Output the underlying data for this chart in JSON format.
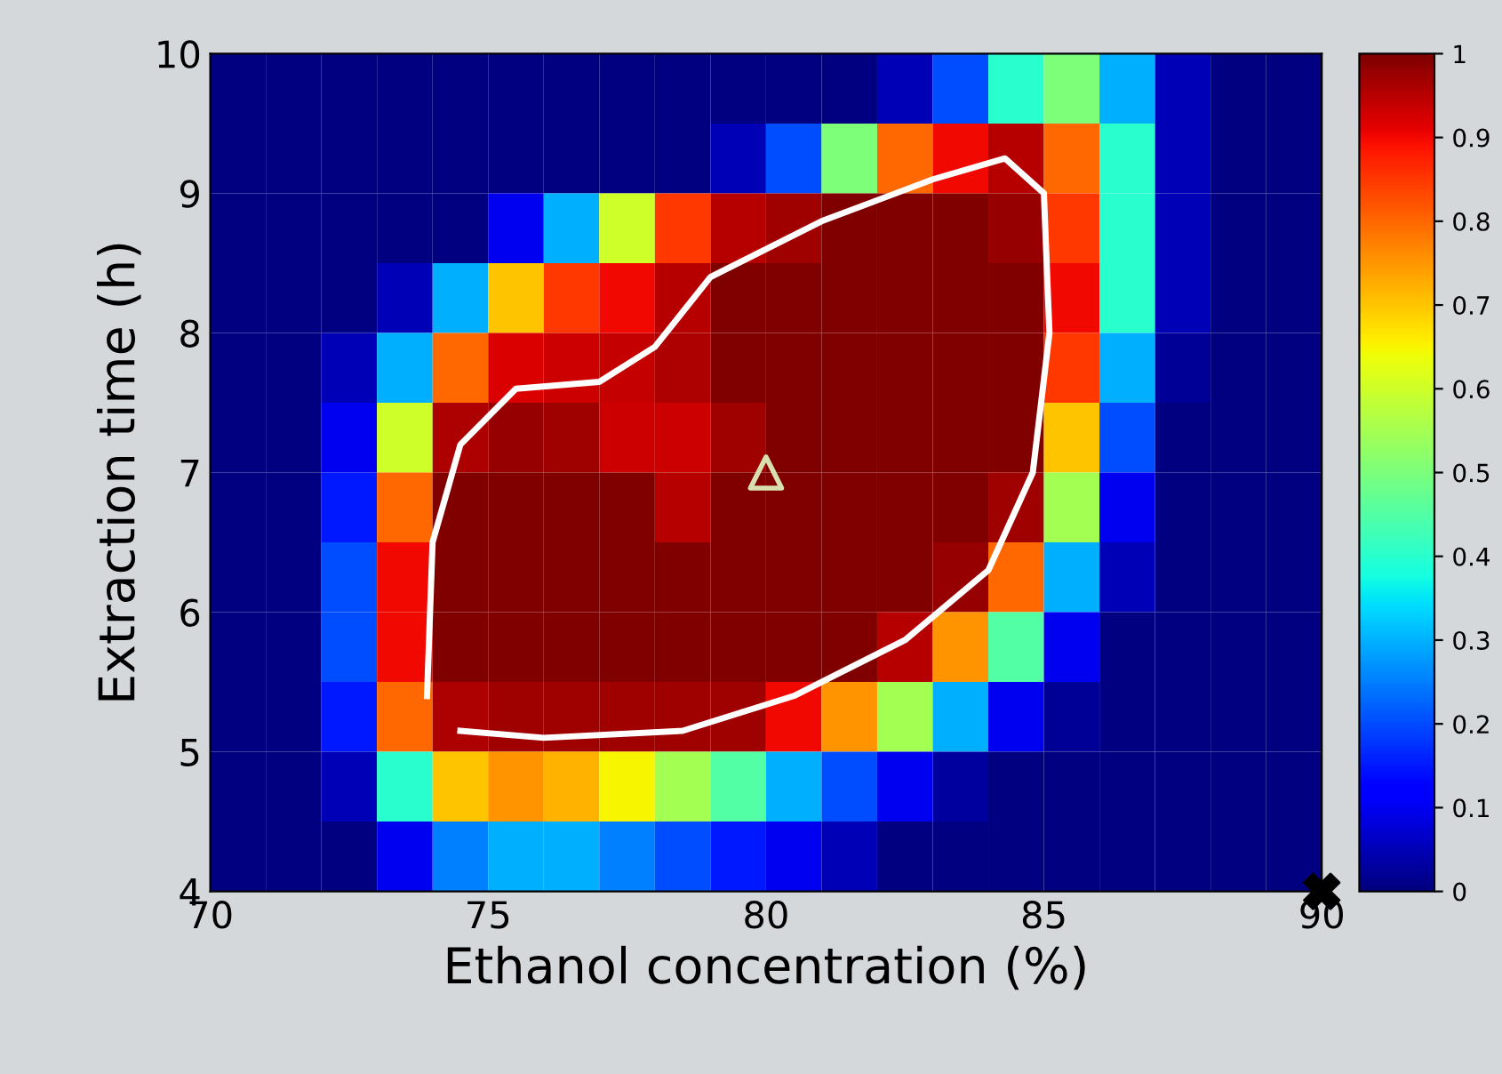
{
  "chart_data": {
    "type": "heatmap",
    "xlabel": "Ethanol concentration (%)",
    "ylabel": "Extraction time (h)",
    "xlim": [
      70,
      90
    ],
    "ylim": [
      4,
      10
    ],
    "xticks": [
      70,
      75,
      80,
      85,
      90
    ],
    "yticks": [
      4,
      5,
      6,
      7,
      8,
      9,
      10
    ],
    "clim": [
      0,
      1
    ],
    "cticks": [
      0,
      0.1,
      0.2,
      0.3,
      0.4,
      0.5,
      0.6,
      0.7,
      0.8,
      0.9,
      1
    ],
    "cells": [
      [
        0,
        0,
        0,
        0,
        0,
        0,
        0,
        0,
        0,
        0,
        0,
        0,
        0.05,
        0.2,
        0.4,
        0.5,
        0.3,
        0.05,
        0,
        0
      ],
      [
        0,
        0,
        0,
        0,
        0,
        0,
        0,
        0,
        0,
        0.05,
        0.2,
        0.5,
        0.8,
        0.9,
        0.95,
        0.8,
        0.4,
        0.05,
        0,
        0
      ],
      [
        0,
        0,
        0,
        0,
        0,
        0.1,
        0.3,
        0.6,
        0.85,
        0.95,
        0.97,
        1,
        1,
        1,
        0.98,
        0.85,
        0.4,
        0.05,
        0,
        0
      ],
      [
        0,
        0,
        0,
        0.05,
        0.3,
        0.7,
        0.85,
        0.9,
        0.95,
        1,
        1,
        1,
        1,
        1,
        1,
        0.9,
        0.4,
        0.05,
        0,
        0
      ],
      [
        0,
        0,
        0.05,
        0.3,
        0.8,
        0.92,
        0.93,
        0.94,
        0.96,
        1,
        1,
        1,
        1,
        1,
        1,
        0.85,
        0.3,
        0.02,
        0,
        0
      ],
      [
        0,
        0,
        0.1,
        0.6,
        0.96,
        0.98,
        0.97,
        0.93,
        0.93,
        0.97,
        1,
        1,
        1,
        1,
        1,
        0.7,
        0.2,
        0,
        0,
        0
      ],
      [
        0,
        0,
        0.15,
        0.8,
        1,
        1,
        1,
        1,
        0.95,
        1,
        1,
        1,
        1,
        1,
        0.97,
        0.55,
        0.1,
        0,
        0,
        0
      ],
      [
        0,
        0,
        0.2,
        0.9,
        1,
        1,
        1,
        1,
        1,
        1,
        1,
        1,
        1,
        0.98,
        0.8,
        0.3,
        0.05,
        0,
        0,
        0
      ],
      [
        0,
        0,
        0.2,
        0.9,
        1,
        1,
        1,
        1,
        1,
        1,
        1,
        1,
        0.95,
        0.75,
        0.45,
        0.1,
        0,
        0,
        0,
        0
      ],
      [
        0,
        0,
        0.15,
        0.8,
        0.96,
        0.97,
        0.97,
        0.97,
        0.97,
        0.97,
        0.9,
        0.75,
        0.55,
        0.3,
        0.1,
        0.02,
        0,
        0,
        0,
        0
      ],
      [
        0,
        0,
        0.05,
        0.4,
        0.7,
        0.75,
        0.72,
        0.65,
        0.55,
        0.45,
        0.3,
        0.2,
        0.1,
        0.03,
        0,
        0,
        0,
        0,
        0,
        0
      ],
      [
        0,
        0,
        0,
        0.1,
        0.25,
        0.3,
        0.3,
        0.25,
        0.2,
        0.15,
        0.1,
        0.05,
        0,
        0,
        0,
        0,
        0,
        0,
        0,
        0
      ]
    ],
    "series": [
      {
        "type": "line",
        "color": "#ffffff",
        "x": [
          73.9,
          74,
          74.5,
          75.5,
          77,
          78,
          79,
          81,
          83,
          84.3,
          85,
          85.1,
          84.8,
          84,
          82.5,
          80.5,
          78.5,
          76,
          74.5
        ],
        "values": [
          5.4,
          6.5,
          7.2,
          7.6,
          7.65,
          7.9,
          8.4,
          8.8,
          9.1,
          9.25,
          9,
          8,
          7,
          6.3,
          5.8,
          5.4,
          5.15,
          5.1,
          5.15
        ]
      },
      {
        "type": "scatter",
        "color": "#d8e0b0",
        "marker": "triangle",
        "x": [
          80
        ],
        "values": [
          7
        ]
      },
      {
        "type": "scatter",
        "color": "#000000",
        "marker": "cross",
        "x": [
          90
        ],
        "values": [
          4
        ]
      }
    ]
  }
}
